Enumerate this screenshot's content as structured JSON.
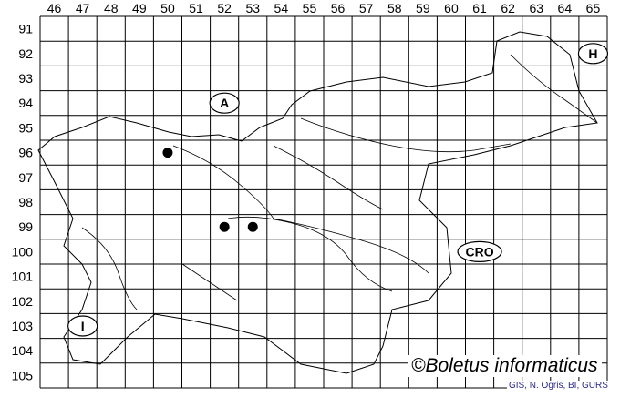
{
  "columns": [
    "46",
    "47",
    "48",
    "49",
    "50",
    "51",
    "52",
    "53",
    "54",
    "55",
    "56",
    "57",
    "58",
    "59",
    "60",
    "61",
    "62",
    "63",
    "64",
    "65"
  ],
  "rows": [
    "91",
    "92",
    "93",
    "94",
    "95",
    "96",
    "97",
    "98",
    "99",
    "100",
    "101",
    "102",
    "103",
    "104",
    "105"
  ],
  "country_labels": [
    {
      "text": "A",
      "cell": {
        "col": 52,
        "row": 94
      }
    },
    {
      "text": "H",
      "cell": {
        "col": 65,
        "row": 92
      }
    },
    {
      "text": "CRO",
      "cell": {
        "col": 61,
        "row": 100
      }
    },
    {
      "text": "I",
      "cell": {
        "col": 47,
        "row": 103
      }
    }
  ],
  "records": [
    {
      "col": 50,
      "row": 96
    },
    {
      "col": 52,
      "row": 99
    },
    {
      "col": 53,
      "row": 99
    }
  ],
  "credit": "©Boletus informaticus",
  "source": "GIS, N. Ogris, BI, GURS",
  "colors": {
    "grid": "#000000",
    "marker": "#000000",
    "source_text": "#2a2a8a"
  }
}
